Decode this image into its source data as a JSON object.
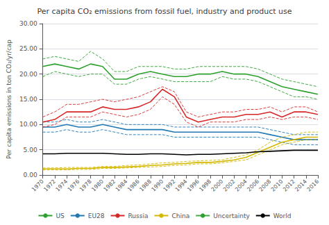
{
  "chart_data": {
    "type": "line",
    "title": "Per capita CO₂ emissions from fossil fuel, industry and product use",
    "ylabel": "Per capita emissions in ton CO₂/yr/cap",
    "uncertainty_label": "Uncertainty",
    "x": [
      1970,
      1972,
      1974,
      1976,
      1978,
      1980,
      1982,
      1984,
      1986,
      1988,
      1990,
      1992,
      1994,
      1996,
      1998,
      2000,
      2002,
      2004,
      2006,
      2008,
      2010,
      2012,
      2014,
      2016
    ],
    "series": [
      {
        "name": "US",
        "color": "#2ca02c",
        "values": [
          21.5,
          22.0,
          21.5,
          21.0,
          22.0,
          21.5,
          19.0,
          19.0,
          20.0,
          20.5,
          20.0,
          19.5,
          19.5,
          20.0,
          20.0,
          20.5,
          20.0,
          20.0,
          19.5,
          18.5,
          17.5,
          17.0,
          16.5,
          16.0
        ],
        "upper": [
          23.0,
          23.5,
          23.0,
          22.5,
          24.5,
          23.0,
          20.5,
          20.5,
          21.5,
          21.5,
          21.5,
          21.0,
          21.0,
          21.5,
          21.5,
          21.5,
          21.5,
          21.5,
          21.0,
          20.0,
          19.0,
          18.5,
          18.0,
          17.5
        ],
        "lower": [
          19.5,
          20.5,
          20.0,
          19.5,
          20.0,
          20.0,
          18.0,
          18.0,
          19.0,
          19.5,
          19.0,
          18.5,
          18.5,
          18.5,
          18.5,
          19.5,
          19.0,
          19.0,
          18.5,
          17.5,
          16.5,
          15.5,
          15.5,
          15.0
        ]
      },
      {
        "name": "EU28",
        "color": "#1f77b4",
        "values": [
          9.5,
          9.5,
          10.0,
          9.5,
          9.5,
          10.0,
          9.5,
          9.0,
          9.0,
          9.0,
          9.0,
          8.5,
          8.5,
          8.5,
          8.5,
          8.5,
          8.5,
          8.5,
          8.5,
          8.0,
          7.5,
          7.0,
          7.0,
          7.0
        ],
        "upper": [
          10.5,
          10.5,
          11.0,
          10.5,
          10.5,
          11.0,
          10.5,
          10.0,
          10.0,
          10.0,
          10.0,
          9.5,
          9.5,
          9.5,
          9.5,
          9.5,
          9.5,
          9.5,
          9.5,
          9.0,
          8.5,
          8.0,
          8.0,
          8.0
        ],
        "lower": [
          8.5,
          8.5,
          9.0,
          8.5,
          8.5,
          9.0,
          8.5,
          8.0,
          8.0,
          8.0,
          8.0,
          7.5,
          7.5,
          7.5,
          7.5,
          7.5,
          7.5,
          7.5,
          7.5,
          7.0,
          6.5,
          6.0,
          6.0,
          6.0
        ]
      },
      {
        "name": "Russia",
        "color": "#d62728",
        "values": [
          10.5,
          11.0,
          12.5,
          12.5,
          12.5,
          13.5,
          13.0,
          13.0,
          13.5,
          14.5,
          17.0,
          15.5,
          11.5,
          10.5,
          11.0,
          11.5,
          11.5,
          12.0,
          12.0,
          12.5,
          11.5,
          12.5,
          12.5,
          12.0
        ],
        "upper": [
          11.5,
          12.5,
          14.0,
          14.0,
          14.5,
          15.0,
          14.5,
          15.0,
          15.5,
          16.5,
          17.5,
          16.5,
          12.5,
          11.5,
          12.0,
          12.5,
          12.5,
          13.0,
          13.0,
          13.5,
          12.5,
          13.5,
          13.5,
          12.5
        ],
        "lower": [
          9.5,
          10.0,
          11.5,
          11.5,
          11.5,
          12.5,
          12.0,
          11.5,
          12.0,
          13.0,
          15.5,
          14.0,
          10.5,
          9.5,
          10.5,
          10.5,
          10.5,
          11.0,
          11.0,
          11.5,
          11.0,
          11.5,
          11.5,
          11.0
        ]
      },
      {
        "name": "China",
        "color": "#d4b800",
        "values": [
          1.2,
          1.2,
          1.2,
          1.3,
          1.3,
          1.5,
          1.5,
          1.6,
          1.7,
          1.9,
          2.0,
          2.2,
          2.3,
          2.5,
          2.5,
          2.7,
          3.0,
          3.5,
          4.5,
          5.5,
          6.5,
          7.0,
          7.5,
          7.5
        ],
        "upper": [
          1.4,
          1.4,
          1.5,
          1.5,
          1.5,
          1.7,
          1.7,
          1.9,
          2.0,
          2.2,
          2.4,
          2.5,
          2.7,
          2.8,
          2.9,
          3.0,
          3.5,
          4.0,
          5.0,
          6.5,
          7.5,
          8.0,
          8.5,
          8.5
        ],
        "lower": [
          1.0,
          1.0,
          1.0,
          1.1,
          1.1,
          1.3,
          1.3,
          1.4,
          1.5,
          1.6,
          1.7,
          1.9,
          2.0,
          2.2,
          2.2,
          2.4,
          2.7,
          3.0,
          4.0,
          5.0,
          6.0,
          6.5,
          7.0,
          7.0
        ]
      },
      {
        "name": "World",
        "color": "#000000",
        "values": [
          4.2,
          4.2,
          4.3,
          4.3,
          4.3,
          4.3,
          4.2,
          4.1,
          4.1,
          4.2,
          4.2,
          4.1,
          4.0,
          4.1,
          4.1,
          4.2,
          4.3,
          4.4,
          4.6,
          4.7,
          4.8,
          4.9,
          4.9,
          4.9
        ]
      }
    ],
    "xlim": [
      1970,
      2016
    ],
    "xticks": [
      1970,
      1972,
      1974,
      1976,
      1978,
      1980,
      1982,
      1984,
      1986,
      1988,
      1990,
      1992,
      1994,
      1996,
      1998,
      2000,
      2002,
      2004,
      2006,
      2008,
      2010,
      2012,
      2014,
      2016
    ],
    "ylim": [
      0,
      30
    ],
    "yticks": [
      {
        "value": 0,
        "label": "0.00"
      },
      {
        "value": 5,
        "label": "5.00"
      },
      {
        "value": 10,
        "label": "10.00"
      },
      {
        "value": 15,
        "label": "15.00"
      },
      {
        "value": 20,
        "label": "20.00"
      },
      {
        "value": 25,
        "label": "25.00"
      },
      {
        "value": 30,
        "label": "30.00"
      }
    ],
    "grid": true,
    "legend": "bottom"
  }
}
